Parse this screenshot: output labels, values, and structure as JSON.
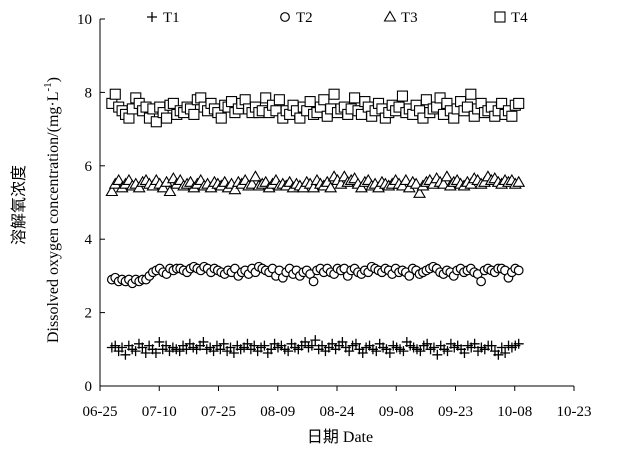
{
  "chart_data": {
    "type": "scatter",
    "xlabel": "日期 Date",
    "ylabel_cn": "溶解氧浓度",
    "ylabel_en": "Dissolved oxygen concentration/(mg·L",
    "ylabel_sup": "-1",
    "ylabel_close": ")",
    "x_ticks": [
      "06-25",
      "07-10",
      "07-25",
      "08-09",
      "08-24",
      "09-08",
      "09-23",
      "10-08",
      "10-23"
    ],
    "xlim_days": [
      0,
      120
    ],
    "ylim": [
      0,
      10
    ],
    "y_ticks": [
      "0",
      "2",
      "4",
      "6",
      "8",
      "10"
    ],
    "legend_position": "top",
    "grid": false,
    "series": [
      {
        "name": "T1",
        "marker": "plus",
        "values": [
          1.05,
          1.1,
          0.95,
          1.05,
          0.85,
          1.1,
          1.0,
          0.95,
          1.15,
          1.05,
          0.9,
          1.1,
          1.0,
          0.9,
          1.2,
          1.0,
          1.1,
          0.95,
          1.05,
          1.0,
          0.95,
          1.1,
          1.0,
          1.15,
          1.05,
          1.0,
          1.1,
          1.2,
          1.0,
          1.05,
          0.95,
          1.1,
          1.0,
          1.15,
          0.95,
          1.05,
          0.9,
          1.1,
          1.0,
          1.05,
          1.15,
          1.0,
          1.1,
          0.95,
          1.05,
          1.1,
          0.9,
          1.0,
          1.15,
          1.05,
          1.1,
          1.0,
          0.95,
          1.15,
          1.05,
          1.0,
          1.1,
          1.2,
          1.05,
          1.1,
          1.25,
          1.0,
          1.1,
          0.95,
          1.05,
          1.15,
          1.0,
          1.1,
          1.2,
          1.05,
          0.95,
          1.1,
          1.15,
          1.0,
          0.9,
          1.05,
          1.1,
          1.0,
          0.95,
          1.15,
          1.05,
          1.0,
          0.9,
          1.1,
          1.05,
          1.0,
          0.95,
          1.2,
          1.1,
          1.05,
          1.0,
          0.95,
          1.1,
          1.15,
          1.0,
          1.05,
          0.85,
          1.1,
          1.0,
          0.95,
          1.15,
          1.05,
          1.1,
          1.0,
          0.9,
          1.1,
          1.05,
          1.15,
          0.95,
          1.05,
          1.0,
          1.1,
          1.1,
          0.95,
          0.85,
          1.05,
          0.9,
          1.1,
          1.05,
          1.1,
          1.15
        ]
      },
      {
        "name": "T2",
        "marker": "circle",
        "values": [
          2.9,
          2.95,
          2.85,
          2.9,
          2.85,
          2.9,
          2.8,
          2.9,
          2.85,
          2.9,
          2.9,
          3.0,
          3.1,
          3.15,
          3.2,
          3.1,
          3.05,
          3.2,
          3.15,
          3.2,
          3.2,
          3.15,
          3.1,
          3.2,
          3.25,
          3.2,
          3.15,
          3.25,
          3.2,
          3.1,
          3.2,
          3.15,
          3.1,
          3.05,
          3.15,
          3.1,
          3.2,
          3.0,
          3.1,
          3.15,
          3.05,
          3.2,
          3.1,
          3.25,
          3.2,
          3.15,
          3.1,
          3.2,
          3.0,
          3.15,
          2.95,
          3.1,
          3.2,
          3.05,
          3.15,
          3.0,
          3.1,
          3.15,
          3.05,
          2.85,
          3.15,
          3.2,
          3.1,
          3.2,
          3.1,
          3.05,
          3.2,
          3.15,
          3.2,
          3.0,
          3.15,
          3.2,
          3.1,
          3.05,
          3.15,
          3.1,
          3.25,
          3.2,
          3.15,
          3.1,
          3.2,
          3.15,
          3.05,
          3.2,
          3.1,
          3.15,
          3.1,
          3.0,
          3.2,
          3.15,
          3.05,
          3.1,
          3.15,
          3.2,
          3.25,
          3.2,
          3.1,
          3.05,
          3.15,
          3.1,
          3.0,
          3.15,
          3.2,
          3.1,
          3.15,
          3.2,
          3.1,
          3.05,
          2.85,
          3.15,
          3.2,
          3.15,
          3.1,
          3.2,
          3.2,
          3.15,
          2.95,
          3.1,
          3.2,
          3.15
        ]
      },
      {
        "name": "T3",
        "marker": "triangle",
        "values": [
          5.3,
          5.5,
          5.6,
          5.4,
          5.5,
          5.6,
          5.45,
          5.5,
          5.4,
          5.55,
          5.6,
          5.5,
          5.45,
          5.6,
          5.5,
          5.4,
          5.55,
          5.3,
          5.65,
          5.5,
          5.6,
          5.45,
          5.5,
          5.55,
          5.4,
          5.5,
          5.6,
          5.45,
          5.5,
          5.4,
          5.55,
          5.5,
          5.45,
          5.55,
          5.4,
          5.5,
          5.35,
          5.55,
          5.5,
          5.6,
          5.45,
          5.5,
          5.7,
          5.45,
          5.5,
          5.55,
          5.4,
          5.5,
          5.6,
          5.45,
          5.5,
          5.45,
          5.55,
          5.4,
          5.5,
          5.45,
          5.4,
          5.55,
          5.5,
          5.4,
          5.6,
          5.5,
          5.45,
          5.55,
          5.4,
          5.7,
          5.6,
          5.5,
          5.7,
          5.55,
          5.6,
          5.65,
          5.5,
          5.4,
          5.55,
          5.6,
          5.45,
          5.5,
          5.4,
          5.55,
          5.5,
          5.45,
          5.5,
          5.6,
          5.5,
          5.45,
          5.6,
          5.4,
          5.55,
          5.5,
          5.25,
          5.45,
          5.55,
          5.6,
          5.5,
          5.65,
          5.55,
          5.5,
          5.7,
          5.45,
          5.55,
          5.6,
          5.5,
          5.45,
          5.55,
          5.5,
          5.65,
          5.6,
          5.5,
          5.55,
          5.7,
          5.6,
          5.65,
          5.55,
          5.5,
          5.6,
          5.55,
          5.6,
          5.5,
          5.55
        ]
      },
      {
        "name": "T4",
        "marker": "square",
        "values": [
          7.7,
          7.95,
          7.6,
          7.5,
          7.4,
          7.3,
          7.55,
          7.85,
          7.7,
          7.5,
          7.6,
          7.3,
          7.55,
          7.2,
          7.6,
          7.45,
          7.3,
          7.65,
          7.7,
          7.4,
          7.5,
          7.45,
          7.6,
          7.55,
          7.4,
          7.8,
          7.85,
          7.6,
          7.5,
          7.7,
          7.55,
          7.45,
          7.3,
          7.65,
          7.6,
          7.75,
          7.45,
          7.55,
          7.7,
          7.8,
          7.55,
          7.45,
          7.6,
          7.45,
          7.5,
          7.85,
          7.45,
          7.65,
          7.5,
          7.8,
          7.3,
          7.5,
          7.4,
          7.65,
          7.5,
          7.3,
          7.6,
          7.5,
          7.75,
          7.4,
          7.45,
          7.6,
          7.8,
          7.35,
          7.55,
          7.95,
          7.45,
          7.55,
          7.6,
          7.4,
          7.55,
          7.85,
          7.5,
          7.4,
          7.75,
          7.6,
          7.35,
          7.5,
          7.7,
          7.55,
          7.3,
          7.45,
          7.65,
          7.5,
          7.6,
          7.9,
          7.45,
          7.55,
          7.4,
          7.65,
          7.5,
          7.3,
          7.8,
          7.45,
          7.55,
          7.6,
          7.85,
          7.4,
          7.7,
          7.5,
          7.3,
          7.55,
          7.75,
          7.5,
          7.6,
          7.95,
          7.35,
          7.55,
          7.7,
          7.45,
          7.5,
          7.6,
          7.35,
          7.5,
          7.7,
          7.4,
          7.5,
          7.35,
          7.65,
          7.7
        ]
      }
    ]
  }
}
